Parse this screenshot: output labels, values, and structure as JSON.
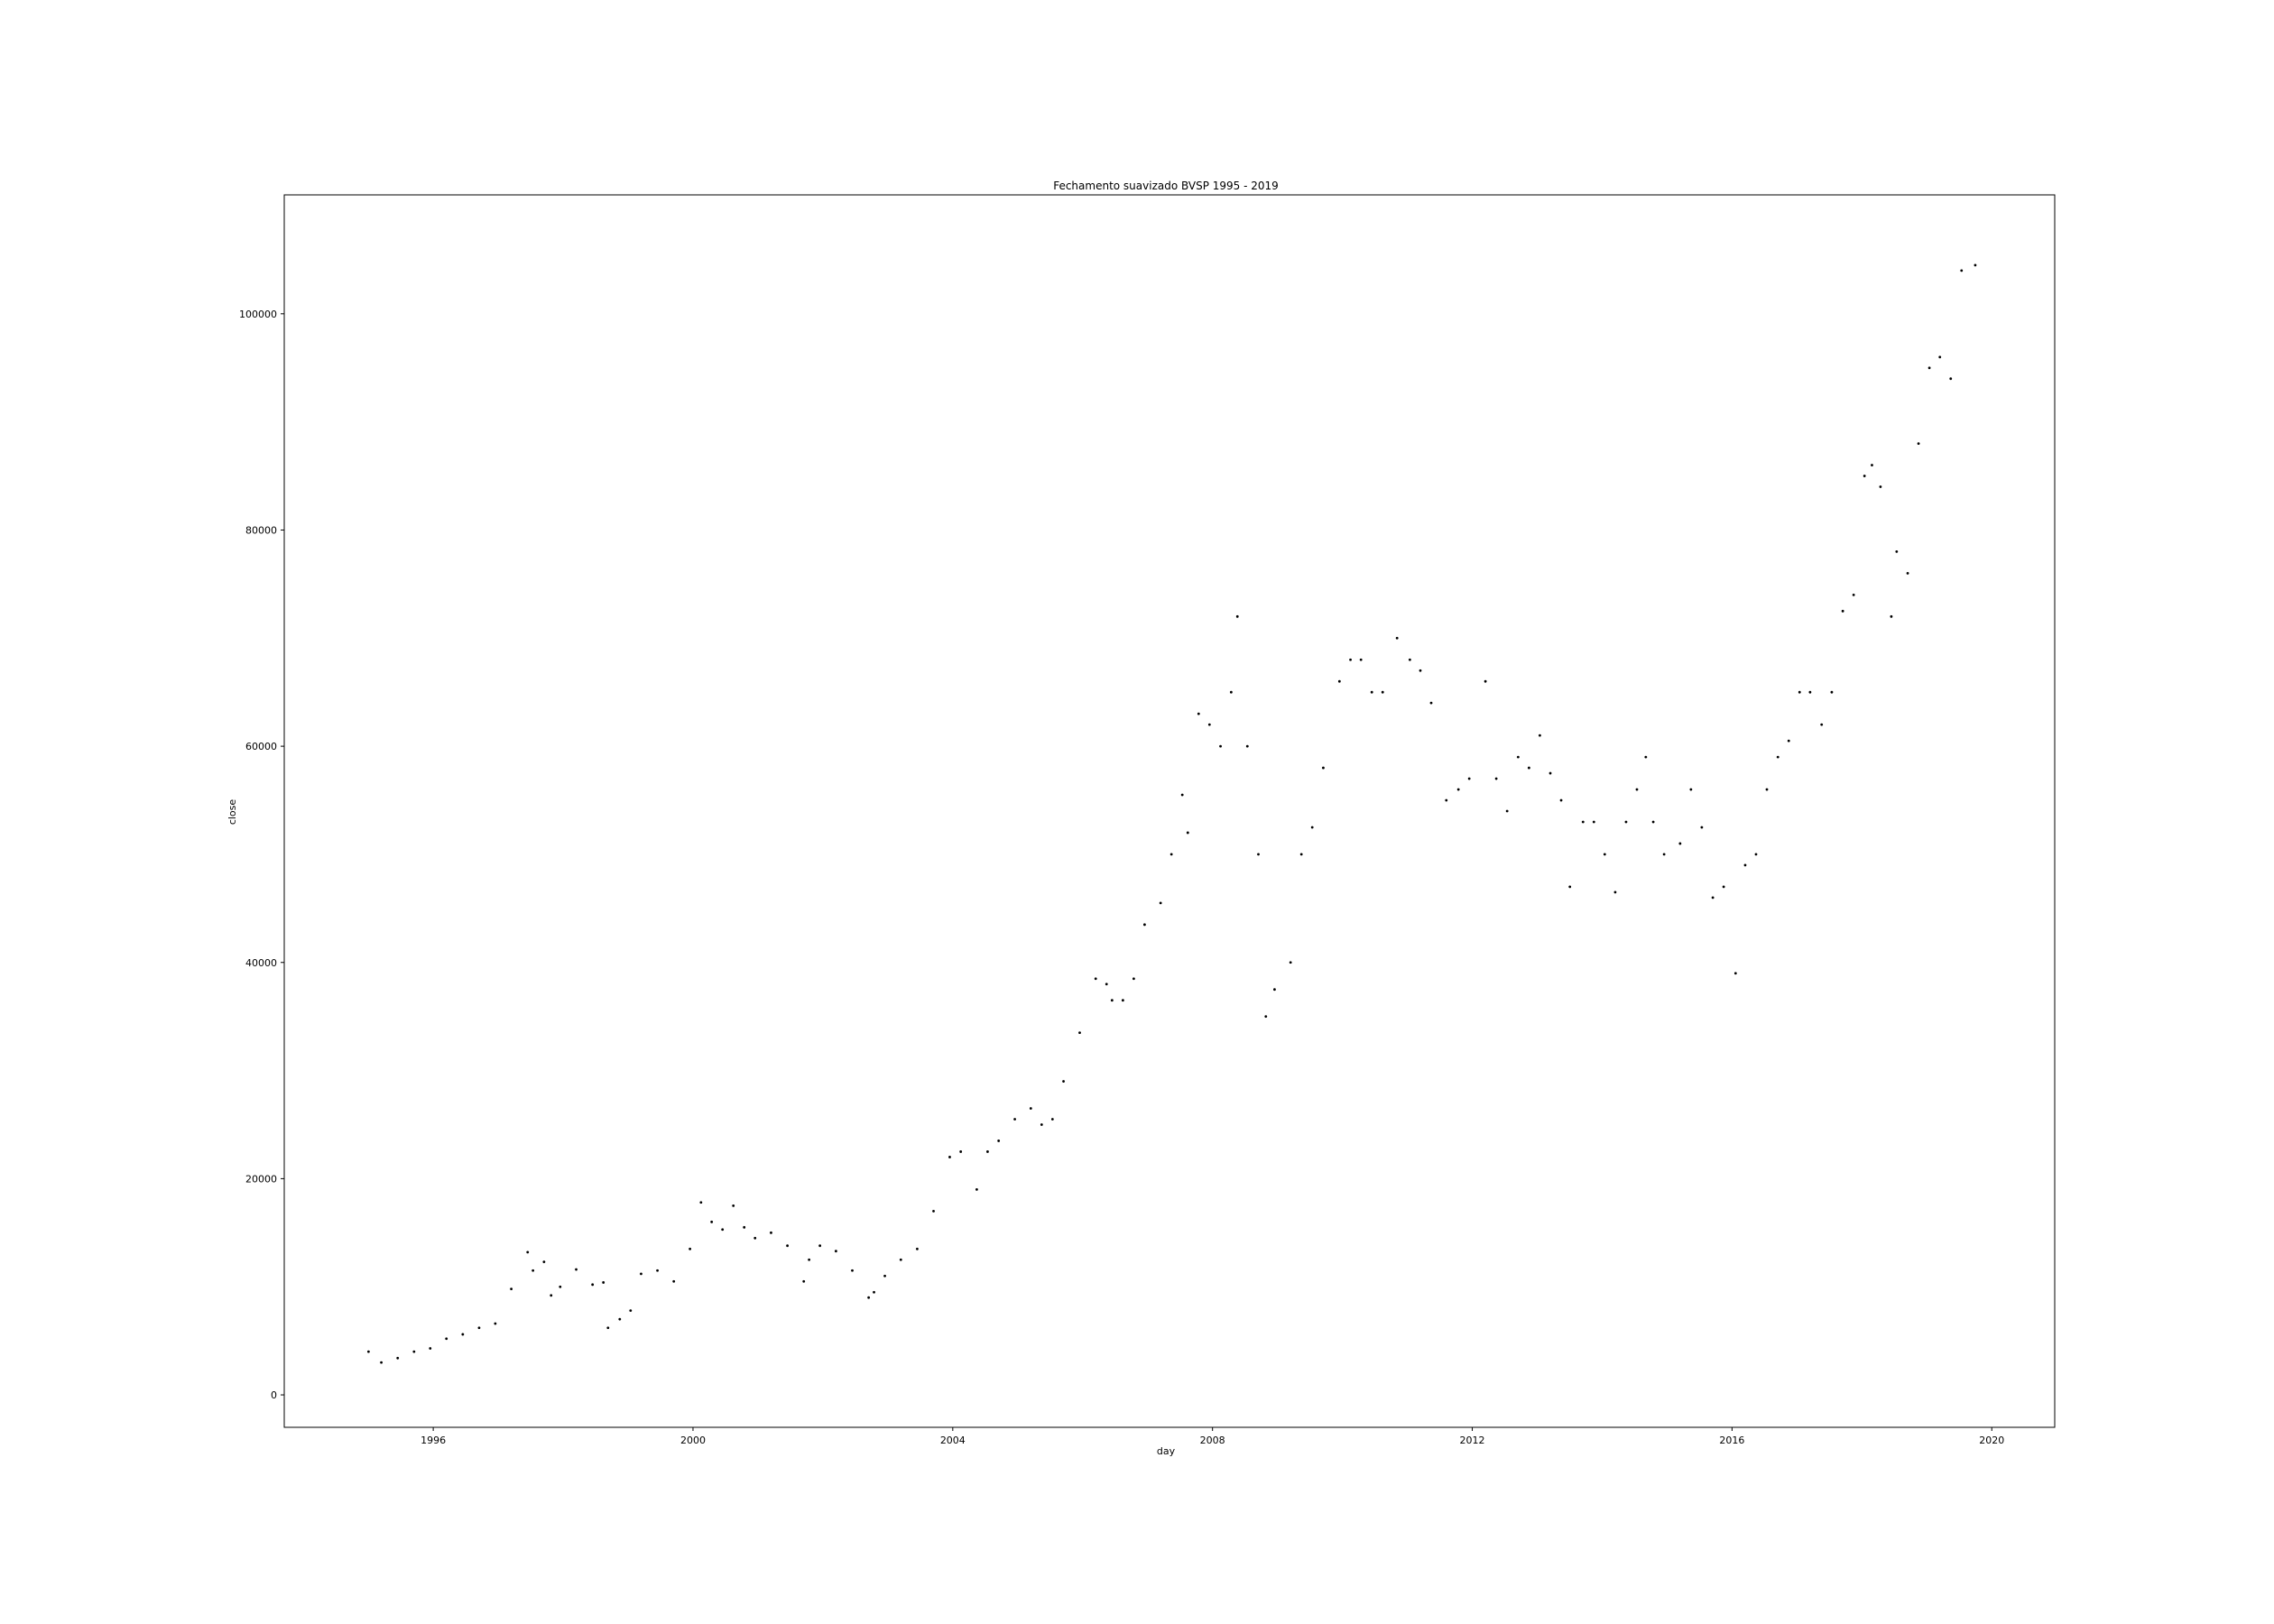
{
  "chart_data": {
    "type": "scatter",
    "title": "Fechamento suavizado BVSP 1995 - 2019",
    "xlabel": "day",
    "ylabel": "close",
    "xlim": [
      "1993-09-15",
      "2020-12-20"
    ],
    "ylim": [
      -3000,
      111000
    ],
    "x_ticks": [
      "1996",
      "2000",
      "2004",
      "2008",
      "2012",
      "2016",
      "2020"
    ],
    "y_ticks": [
      0,
      20000,
      40000,
      60000,
      80000,
      100000
    ],
    "grid": false,
    "marker_color": "#000000",
    "x": [
      "1995-01-02",
      "1995-03-15",
      "1995-06-15",
      "1995-09-15",
      "1995-12-15",
      "1996-03-15",
      "1996-06-15",
      "1996-09-15",
      "1996-12-15",
      "1997-03-15",
      "1997-06-15",
      "1997-07-15",
      "1997-09-15",
      "1997-10-25",
      "1997-12-15",
      "1998-03-15",
      "1998-06-15",
      "1998-08-15",
      "1998-09-10",
      "1998-11-15",
      "1999-01-15",
      "1999-03-15",
      "1999-06-15",
      "1999-09-15",
      "1999-12-15",
      "2000-02-15",
      "2000-04-15",
      "2000-06-15",
      "2000-08-15",
      "2000-10-15",
      "2000-12-15",
      "2001-03-15",
      "2001-06-15",
      "2001-09-15",
      "2001-10-15",
      "2001-12-15",
      "2002-03-15",
      "2002-06-15",
      "2002-09-15",
      "2002-10-15",
      "2002-12-15",
      "2003-03-15",
      "2003-06-15",
      "2003-09-15",
      "2003-12-15",
      "2004-02-15",
      "2004-05-15",
      "2004-07-15",
      "2004-09-15",
      "2004-12-15",
      "2005-03-15",
      "2005-05-15",
      "2005-07-15",
      "2005-09-15",
      "2005-12-15",
      "2006-03-15",
      "2006-05-15",
      "2006-06-15",
      "2006-08-15",
      "2006-10-15",
      "2006-12-15",
      "2007-03-15",
      "2007-05-15",
      "2007-07-15",
      "2007-08-15",
      "2007-10-15",
      "2007-12-15",
      "2008-02-15",
      "2008-04-15",
      "2008-05-20",
      "2008-07-15",
      "2008-09-15",
      "2008-10-27",
      "2008-12-15",
      "2009-03-15",
      "2009-05-15",
      "2009-07-15",
      "2009-09-15",
      "2009-12-15",
      "2010-02-15",
      "2010-04-15",
      "2010-06-15",
      "2010-08-15",
      "2010-11-04",
      "2011-01-15",
      "2011-03-15",
      "2011-05-15",
      "2011-08-08",
      "2011-10-15",
      "2011-12-15",
      "2012-03-15",
      "2012-05-15",
      "2012-07-15",
      "2012-09-15",
      "2012-11-15",
      "2013-01-15",
      "2013-03-15",
      "2013-05-15",
      "2013-07-03",
      "2013-09-15",
      "2013-11-15",
      "2014-01-15",
      "2014-03-15",
      "2014-05-15",
      "2014-07-15",
      "2014-09-03",
      "2014-10-15",
      "2014-12-15",
      "2015-03-15",
      "2015-05-15",
      "2015-07-15",
      "2015-09-15",
      "2015-11-15",
      "2016-01-21",
      "2016-03-15",
      "2016-05-15",
      "2016-07-15",
      "2016-09-15",
      "2016-11-15",
      "2017-01-15",
      "2017-03-15",
      "2017-05-19",
      "2017-07-15",
      "2017-09-15",
      "2017-11-15",
      "2018-01-15",
      "2018-02-26",
      "2018-04-15",
      "2018-06-15",
      "2018-07-15",
      "2018-09-15",
      "2018-11-15",
      "2019-01-15",
      "2019-03-15",
      "2019-05-15",
      "2019-07-15",
      "2019-09-30"
    ],
    "y": [
      4000,
      3000,
      3400,
      4000,
      4300,
      5200,
      5600,
      6200,
      6600,
      9800,
      13200,
      11500,
      12300,
      9200,
      10000,
      11600,
      10200,
      10400,
      6200,
      7000,
      7800,
      11200,
      11500,
      10500,
      13500,
      17800,
      16000,
      15300,
      17500,
      15500,
      14500,
      15000,
      13800,
      10500,
      12500,
      13800,
      13300,
      11500,
      9000,
      9500,
      11000,
      12500,
      13500,
      17000,
      22000,
      22500,
      19000,
      22500,
      23500,
      25500,
      26500,
      25000,
      25500,
      29000,
      33500,
      38500,
      38000,
      36500,
      36500,
      38500,
      43500,
      45500,
      50000,
      55500,
      52000,
      63000,
      62000,
      60000,
      65000,
      72000,
      60000,
      50000,
      35000,
      37500,
      40000,
      50000,
      52500,
      58000,
      66000,
      68000,
      68000,
      65000,
      65000,
      70000,
      68000,
      67000,
      64000,
      55000,
      56000,
      57000,
      66000,
      57000,
      54000,
      59000,
      58000,
      61000,
      57500,
      55000,
      47000,
      53000,
      53000,
      50000,
      46500,
      53000,
      56000,
      59000,
      53000,
      50000,
      51000,
      56000,
      52500,
      46000,
      47000,
      39000,
      49000,
      50000,
      56000,
      59000,
      60500,
      65000,
      65000,
      62000,
      65000,
      72500,
      74000,
      85000,
      86000,
      84000,
      72000,
      78000,
      76000,
      88000,
      95000,
      96000,
      94000,
      104000,
      104500
    ]
  }
}
